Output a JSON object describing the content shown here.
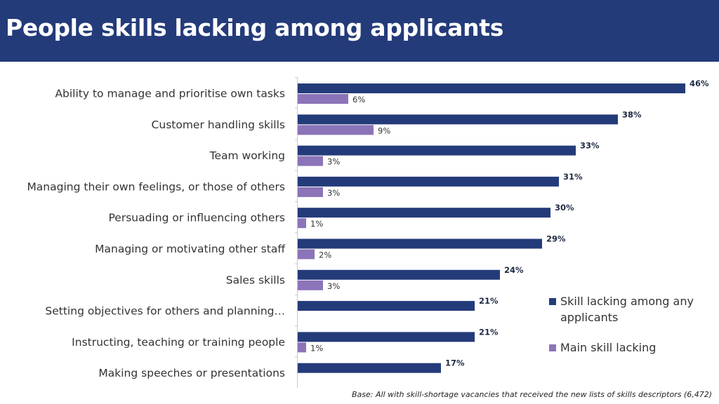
{
  "title": "People skills lacking among applicants",
  "footnote": "Base: All with skill-shortage vacancies that received the new lists of skills descriptors (6,472)",
  "colors": {
    "header_bg": "#243b7a",
    "series_any": "#243b7a",
    "series_main": "#8b74b8"
  },
  "legend": [
    {
      "label": "Skill lacking among any applicants",
      "lines": [
        "Skill lacking among any",
        "applicants"
      ]
    },
    {
      "label": "Main skill lacking",
      "lines": [
        "Main skill lacking"
      ]
    }
  ],
  "chart_data": {
    "type": "bar",
    "orientation": "horizontal",
    "categories": [
      "Ability to manage and prioritise own tasks",
      "Customer handling skills",
      "Team working",
      "Managing their own feelings, or those of others",
      "Persuading or influencing others",
      "Managing or motivating other staff",
      "Sales skills",
      "Setting objectives for others and planning…",
      "Instructing, teaching or training people",
      "Making speeches or presentations"
    ],
    "series": [
      {
        "name": "Skill lacking among any applicants",
        "values": [
          46,
          38,
          33,
          31,
          30,
          29,
          24,
          21,
          21,
          17
        ],
        "labels": [
          "46%",
          "38%",
          "33%",
          "31%",
          "30%",
          "29%",
          "24%",
          "21%",
          "21%",
          "17%"
        ]
      },
      {
        "name": "Main skill lacking",
        "values": [
          6,
          9,
          3,
          3,
          1,
          2,
          3,
          null,
          1,
          null
        ],
        "labels": [
          "6%",
          "9%",
          "3%",
          "3%",
          "1%",
          "2%",
          "3%",
          null,
          "1%",
          null
        ]
      }
    ],
    "xlim": [
      0,
      46
    ],
    "grid": false,
    "legend_position": "bottom-right"
  }
}
